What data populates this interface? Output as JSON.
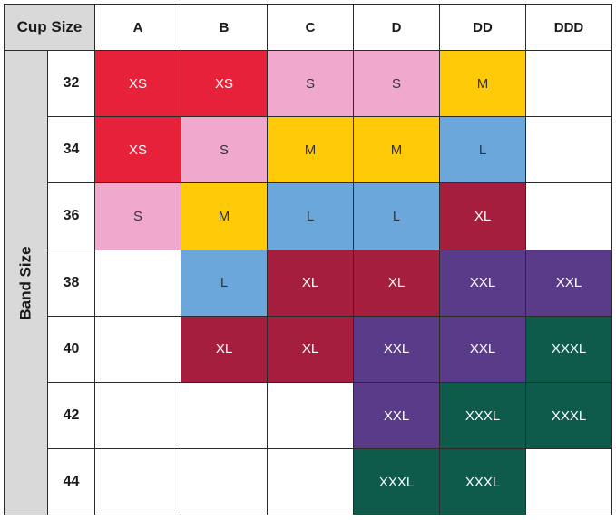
{
  "header": {
    "corner_label": "Cup Size",
    "row_axis_label": "Band Size"
  },
  "cups": [
    "A",
    "B",
    "C",
    "D",
    "DD",
    "DDD"
  ],
  "bands": [
    "32",
    "34",
    "36",
    "38",
    "40",
    "42",
    "44"
  ],
  "size_colors": {
    "XS": "#e8213a",
    "S": "#f0a9cd",
    "M": "#ffcb08",
    "L": "#6ca7dc",
    "XL": "#a61e3d",
    "XXL": "#5a3b8a",
    "XXXL": "#0e5b4c"
  },
  "size_text_colors": {
    "XS": "#ffffff",
    "S": "#333333",
    "M": "#333333",
    "L": "#333333",
    "XL": "#ffffff",
    "XXL": "#ffffff",
    "XXXL": "#ffffff"
  },
  "grid": [
    [
      "XS",
      "XS",
      "S",
      "S",
      "M",
      ""
    ],
    [
      "XS",
      "S",
      "M",
      "M",
      "L",
      ""
    ],
    [
      "S",
      "M",
      "L",
      "L",
      "XL",
      ""
    ],
    [
      "",
      "L",
      "XL",
      "XL",
      "XXL",
      "XXL"
    ],
    [
      "",
      "XL",
      "XL",
      "XXL",
      "XXL",
      "XXXL"
    ],
    [
      "",
      "",
      "",
      "XXL",
      "XXXL",
      "XXXL"
    ],
    [
      "",
      "",
      "",
      "XXXL",
      "XXXL",
      ""
    ]
  ]
}
